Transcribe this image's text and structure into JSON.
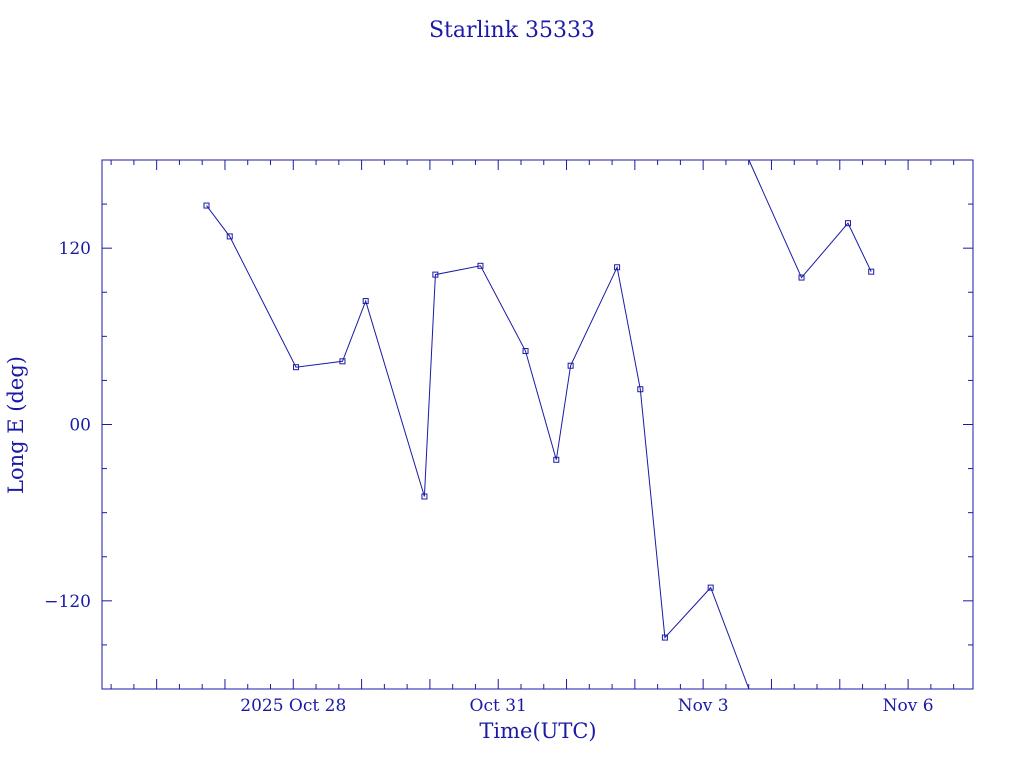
{
  "chart_data": {
    "type": "line",
    "title": "Starlink 35333",
    "xlabel": "Time(UTC)",
    "ylabel": "Long E (deg)",
    "color": "#1a1aa6",
    "grid": false,
    "legend": "none",
    "x_unit": "days since 2025-10-28 00:00 UTC",
    "xlim": [
      -2.8,
      9.95
    ],
    "ylim": [
      -180,
      180
    ],
    "x_ticks": [
      {
        "x": 0,
        "label": "2025 Oct 28"
      },
      {
        "x": 3,
        "label": "Oct 31"
      },
      {
        "x": 6,
        "label": "Nov  3"
      },
      {
        "x": 9,
        "label": "Nov  6"
      }
    ],
    "y_ticks": [
      {
        "y": 120,
        "label": "120"
      },
      {
        "y": 0,
        "label": "00"
      },
      {
        "y": -120,
        "label": "−120"
      }
    ],
    "segments": [
      {
        "points": [
          {
            "x": -1.27,
            "y": 149,
            "marker": true
          },
          {
            "x": -0.93,
            "y": 128,
            "marker": true
          },
          {
            "x": 0.04,
            "y": 39,
            "marker": true
          },
          {
            "x": 0.72,
            "y": 43,
            "marker": true
          },
          {
            "x": 1.06,
            "y": 84,
            "marker": true
          },
          {
            "x": 1.92,
            "y": -49,
            "marker": true
          },
          {
            "x": 2.08,
            "y": 102,
            "marker": true
          },
          {
            "x": 2.74,
            "y": 108,
            "marker": true
          },
          {
            "x": 3.4,
            "y": 50,
            "marker": true
          },
          {
            "x": 3.85,
            "y": -24,
            "marker": true
          },
          {
            "x": 4.06,
            "y": 40,
            "marker": true
          },
          {
            "x": 4.74,
            "y": 107,
            "marker": true
          },
          {
            "x": 5.08,
            "y": 24,
            "marker": true
          },
          {
            "x": 5.44,
            "y": -145,
            "marker": true
          },
          {
            "x": 6.11,
            "y": -111,
            "marker": true
          },
          {
            "x": 6.67,
            "y": -180,
            "marker": false
          }
        ]
      },
      {
        "points": [
          {
            "x": 6.67,
            "y": 180,
            "marker": false
          },
          {
            "x": 7.44,
            "y": 100,
            "marker": true
          },
          {
            "x": 8.12,
            "y": 137,
            "marker": true
          },
          {
            "x": 8.46,
            "y": 104,
            "marker": true
          }
        ]
      }
    ]
  }
}
